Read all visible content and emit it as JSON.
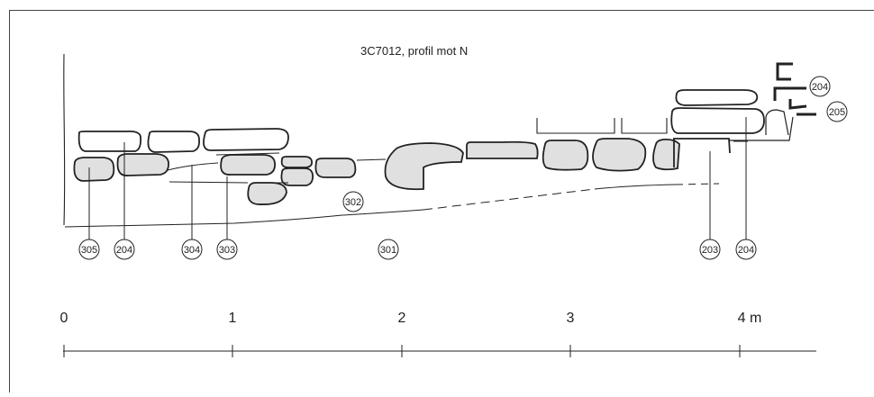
{
  "title": "3C7012, profil mot N",
  "layer_labels": [
    {
      "id": "l305",
      "text": "305"
    },
    {
      "id": "l204a",
      "text": "204"
    },
    {
      "id": "l304",
      "text": "304"
    },
    {
      "id": "l303",
      "text": "303"
    },
    {
      "id": "l302",
      "text": "302"
    },
    {
      "id": "l301",
      "text": "301"
    },
    {
      "id": "l203",
      "text": "203"
    },
    {
      "id": "l204b",
      "text": "204"
    },
    {
      "id": "l204c",
      "text": "204"
    },
    {
      "id": "l205",
      "text": "205"
    }
  ],
  "scale": {
    "labels": [
      "0",
      "1",
      "2",
      "3",
      "4 m"
    ]
  },
  "colors": {
    "stone_fill": "#e0e0e0",
    "line": "#222222",
    "frame": "#444444"
  }
}
